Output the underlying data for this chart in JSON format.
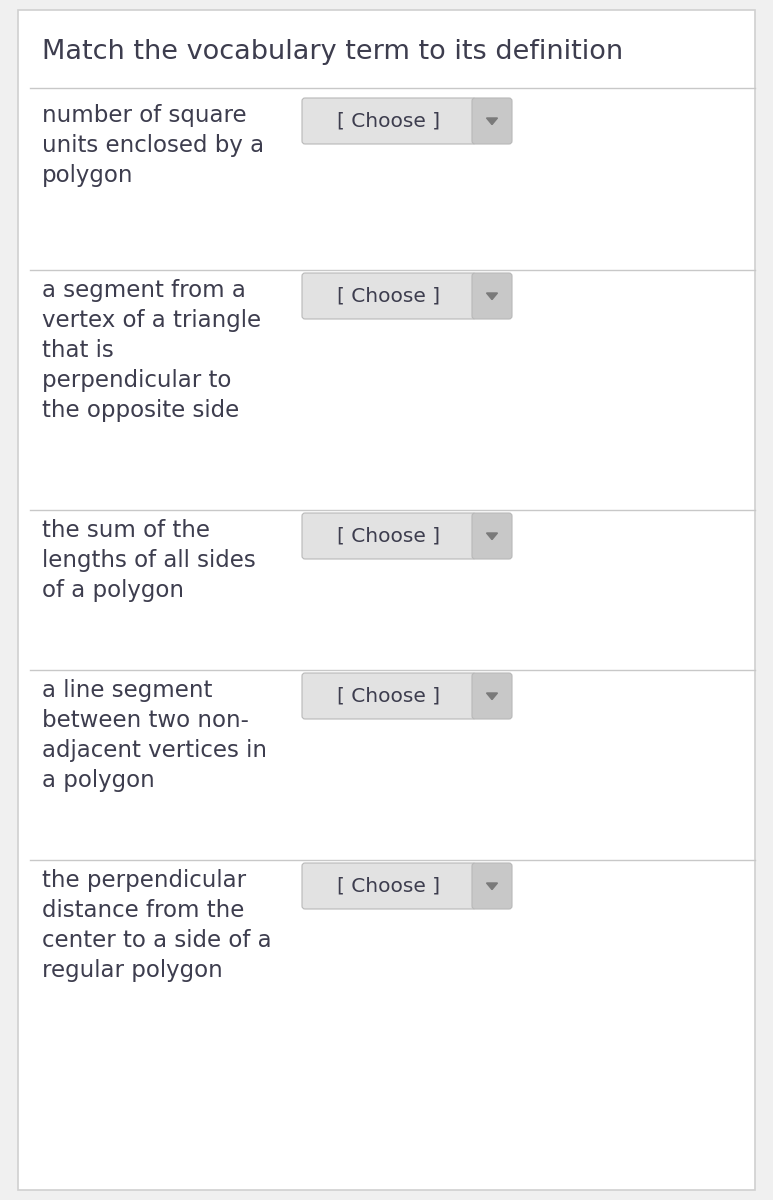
{
  "title": "Match the vocabulary term to its definition",
  "bg_color": "#f0f0f0",
  "card_bg": "#ffffff",
  "text_color": "#3d3d4e",
  "divider_color": "#c8c8c8",
  "button_main_color": "#e2e2e2",
  "button_arrow_color": "#c8c8c8",
  "choose_text": "[ Choose ]",
  "items": [
    {
      "lines": [
        "number of square",
        "units enclosed by a",
        "polygon"
      ]
    },
    {
      "lines": [
        "a segment from a",
        "vertex of a triangle",
        "that is",
        "perpendicular to",
        "the opposite side"
      ]
    },
    {
      "lines": [
        "the sum of the",
        "lengths of all sides",
        "of a polygon"
      ]
    },
    {
      "lines": [
        "a line segment",
        "between two non-",
        "adjacent vertices in",
        "a polygon"
      ]
    },
    {
      "lines": [
        "the perpendicular",
        "distance from the",
        "center to a side of a",
        "regular polygon"
      ]
    }
  ],
  "title_fontsize": 19.5,
  "item_fontsize": 16.5,
  "choose_fontsize": 14.5,
  "fig_width": 7.73,
  "fig_height": 12.0,
  "dpi": 100
}
